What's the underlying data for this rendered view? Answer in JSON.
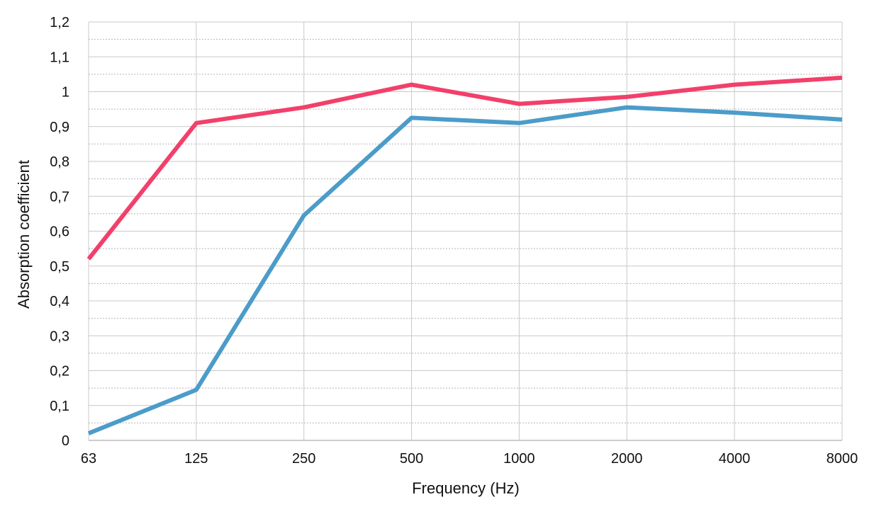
{
  "chart_data": {
    "type": "line",
    "xlabel": "Frequency (Hz)",
    "ylabel": "Absorption coefficient",
    "categories": [
      "63",
      "125",
      "250",
      "500",
      "1000",
      "2000",
      "4000",
      "8000"
    ],
    "ylim": [
      0,
      1.2
    ],
    "y_ticks": [
      "0",
      "0,1",
      "0,2",
      "0,3",
      "0,4",
      "0,5",
      "0,6",
      "0,7",
      "0,8",
      "0,9",
      "1",
      "1,1",
      "1,2"
    ],
    "grid": true,
    "minor_grid": "dotted",
    "legend": "none",
    "series": [
      {
        "color": "#f2406b",
        "values": [
          0.52,
          0.91,
          0.955,
          1.02,
          0.965,
          0.985,
          1.02,
          1.04
        ]
      },
      {
        "color": "#4b9cc9",
        "values": [
          0.02,
          0.145,
          0.645,
          0.925,
          0.91,
          0.955,
          0.94,
          0.92
        ]
      }
    ]
  }
}
